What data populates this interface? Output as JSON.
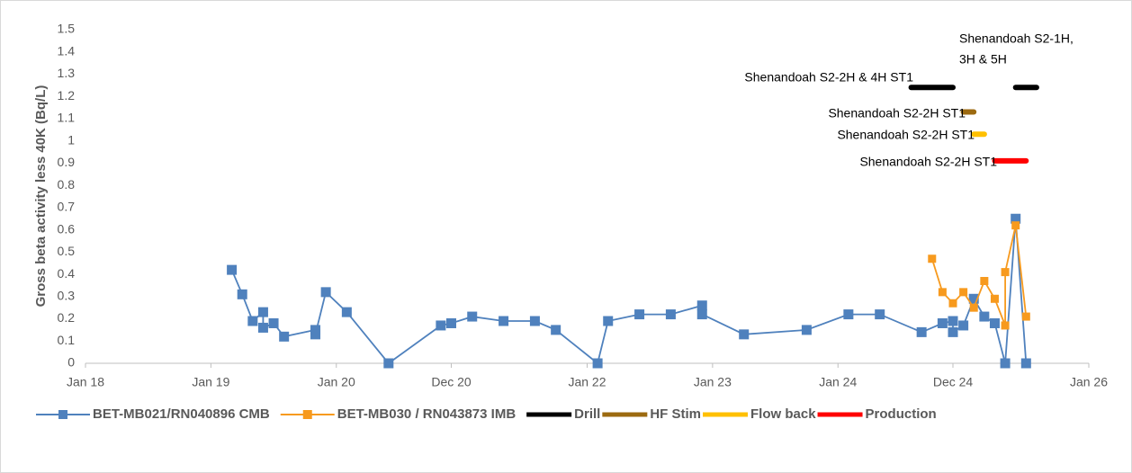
{
  "chart_data": {
    "type": "line",
    "ylabel": "Gross beta activity  less 40K (Bq/L)",
    "xlim": [
      "2018-01",
      "2026-01"
    ],
    "xticks": [
      {
        "value": "2018-01",
        "label": "Jan 18"
      },
      {
        "value": "2019-01",
        "label": "Jan 19"
      },
      {
        "value": "2020-01",
        "label": "Jan 20"
      },
      {
        "value": "2020-12",
        "label": "Dec 20"
      },
      {
        "value": "2022-01",
        "label": "Jan 22"
      },
      {
        "value": "2023-01",
        "label": "Jan 23"
      },
      {
        "value": "2024-01",
        "label": "Jan 24"
      },
      {
        "value": "2024-12",
        "label": "Dec 24"
      },
      {
        "value": "2026-01",
        "label": "Jan 26"
      }
    ],
    "ylim": [
      0,
      1.5
    ],
    "yticks": [
      0,
      0.1,
      0.2,
      0.3,
      0.4,
      0.5,
      0.6,
      0.7,
      0.8,
      0.9,
      1,
      1.1,
      1.2,
      1.3,
      1.4,
      1.5
    ],
    "grid": false,
    "legend": "bottom",
    "series": [
      {
        "name": "BET-MB021/RN040896 CMB",
        "color": "#4f81bd",
        "marker": "square",
        "x": [
          "2019-03",
          "2019-04",
          "2019-05",
          "2019-06",
          "2019-06",
          "2019-07",
          "2019-08",
          "2019-11",
          "2019-11",
          "2019-12",
          "2020-02",
          "2020-06",
          "2020-11",
          "2020-12",
          "2021-02",
          "2021-05",
          "2021-08",
          "2021-10",
          "2022-02",
          "2022-03",
          "2022-06",
          "2022-09",
          "2022-12",
          "2022-12",
          "2023-04",
          "2023-10",
          "2024-02",
          "2024-05",
          "2024-09",
          "2024-11",
          "2024-12",
          "2024-12",
          "2025-01",
          "2025-02",
          "2025-03",
          "2025-04",
          "2025-05",
          "2025-06",
          "2025-07"
        ],
        "values": [
          0.42,
          0.31,
          0.19,
          0.23,
          0.16,
          0.18,
          0.12,
          0.15,
          0.13,
          0.32,
          0.23,
          0,
          0.17,
          0.18,
          0.21,
          0.19,
          0.19,
          0.15,
          0,
          0.19,
          0.22,
          0.22,
          0.26,
          0.22,
          0.13,
          0.15,
          0.22,
          0.22,
          0.14,
          0.18,
          0.19,
          0.14,
          0.17,
          0.29,
          0.21,
          0.18,
          0,
          0.65,
          0
        ]
      },
      {
        "name": "BET-MB030 / RN043873 IMB",
        "color": "#f79a1e",
        "marker": "square",
        "x": [
          "2024-10",
          "2024-11",
          "2024-12",
          "2025-01",
          "2025-02",
          "2025-03",
          "2025-04",
          "2025-05",
          "2025-05",
          "2025-06",
          "2025-07"
        ],
        "values": [
          0.47,
          0.32,
          0.27,
          0.32,
          0.25,
          0.37,
          0.29,
          0.17,
          0.41,
          0.62,
          0.21
        ]
      },
      {
        "name": "Drill",
        "color": "#000000",
        "marker": "none",
        "x": [
          "2024-08",
          "2024-12",
          null,
          "2025-06",
          "2025-08"
        ],
        "values": [
          1.24,
          1.24,
          null,
          1.24,
          1.24
        ]
      },
      {
        "name": "HF Stim",
        "color": "#9c6a10",
        "marker": "none",
        "x": [
          "2025-01",
          "2025-02"
        ],
        "values": [
          1.13,
          1.13
        ]
      },
      {
        "name": "Flow back",
        "color": "#ffc000",
        "marker": "none",
        "x": [
          "2025-02",
          "2025-03"
        ],
        "values": [
          1.03,
          1.03
        ]
      },
      {
        "name": "Production",
        "color": "#ff0000",
        "marker": "none",
        "x": [
          "2025-04",
          "2025-07"
        ],
        "values": [
          0.91,
          0.91
        ]
      }
    ],
    "annotations": [
      {
        "lines": [
          "Shenandoah S2-1H,",
          "3H & 5H"
        ]
      },
      {
        "lines": [
          "Shenandoah S2-2H & 4H ST1"
        ]
      },
      {
        "lines": [
          "Shenandoah S2-2H ST1"
        ]
      },
      {
        "lines": [
          "Shenandoah S2-2H ST1"
        ]
      },
      {
        "lines": [
          "Shenandoah S2-2H ST1"
        ]
      }
    ]
  }
}
